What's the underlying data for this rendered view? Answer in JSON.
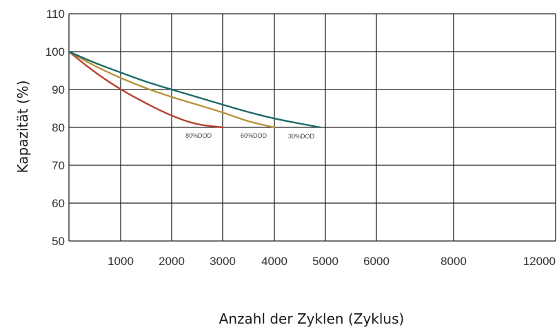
{
  "chart_data": {
    "type": "line",
    "xlabel": "Anzahl der Zyklen (Zyklus)",
    "ylabel": "Kapazität (%)",
    "ylim": [
      50,
      110
    ],
    "y_ticks": [
      50,
      60,
      70,
      80,
      90,
      100,
      110
    ],
    "x_ticks": [
      "1000",
      "2000",
      "3000",
      "4000",
      "5000",
      "6000",
      "8000",
      "12000"
    ],
    "grid": true,
    "series": [
      {
        "name": "80%DOD",
        "color": "#b7412e",
        "x": [
          0,
          500,
          1000,
          1500,
          2000,
          2500,
          3000
        ],
        "values": [
          100,
          94.5,
          90,
          86.3,
          83,
          80.7,
          80
        ]
      },
      {
        "name": "60%DOD",
        "color": "#b8923a",
        "x": [
          0,
          500,
          1000,
          1500,
          2000,
          2500,
          3000,
          3500,
          4000
        ],
        "values": [
          100,
          96.2,
          93,
          90.3,
          88,
          86,
          84,
          81.5,
          80
        ]
      },
      {
        "name": "30%DOD",
        "color": "#1c6a68",
        "x": [
          0,
          500,
          1000,
          1500,
          2000,
          2500,
          3000,
          3500,
          4000,
          4500,
          4900
        ],
        "values": [
          100,
          97,
          94.5,
          92,
          90,
          88,
          86,
          84,
          82.3,
          81,
          80
        ]
      }
    ]
  }
}
